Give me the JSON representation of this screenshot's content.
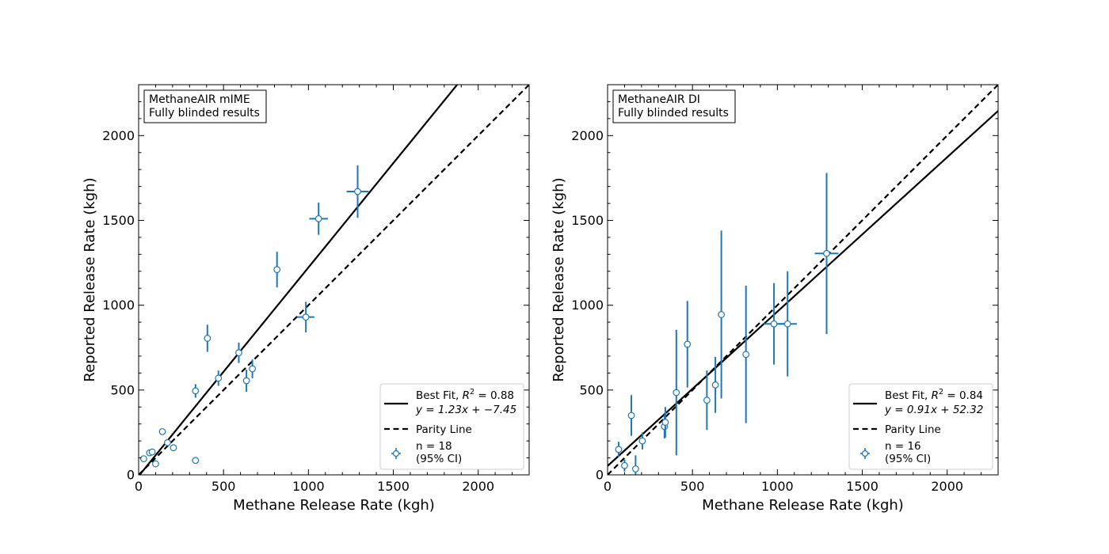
{
  "chart_data": [
    {
      "type": "scatter",
      "annotation_lines": [
        "MethaneAIR mIME",
        " Fully blinded results"
      ],
      "xlabel": "Methane Release Rate (kgh)",
      "ylabel": "Reported Release Rate (kgh)",
      "xlim": [
        0,
        2300
      ],
      "ylim": [
        0,
        2300
      ],
      "xticks": [
        0,
        500,
        1000,
        1500,
        2000
      ],
      "yticks": [
        0,
        500,
        1000,
        1500,
        2000
      ],
      "grid": false,
      "legend_position": "lower-right",
      "series": [
        {
          "name": "n = 18 (95% CI)",
          "legend_lines": [
            "n = 18",
            "(95% CI)"
          ],
          "color": "#1f77b4",
          "points": [
            {
              "x": 30,
              "y": 95,
              "xerr": 0,
              "yerr": 0
            },
            {
              "x": 65,
              "y": 130,
              "xerr": 0,
              "yerr": 0
            },
            {
              "x": 80,
              "y": 135,
              "xerr": 0,
              "yerr": 0
            },
            {
              "x": 100,
              "y": 65,
              "xerr": 0,
              "yerr": 0
            },
            {
              "x": 140,
              "y": 255,
              "xerr": 0,
              "yerr": 0
            },
            {
              "x": 170,
              "y": 190,
              "xerr": 0,
              "yerr": 0
            },
            {
              "x": 205,
              "y": 160,
              "xerr": 0,
              "yerr": 0
            },
            {
              "x": 335,
              "y": 85,
              "xerr": 0,
              "yerr": 0
            },
            {
              "x": 335,
              "y": 495,
              "xerr": 0,
              "yerr": 40
            },
            {
              "x": 405,
              "y": 805,
              "xerr": 0,
              "yerr": 80
            },
            {
              "x": 470,
              "y": 570,
              "xerr": 0,
              "yerr": 45
            },
            {
              "x": 590,
              "y": 720,
              "xerr": 0,
              "yerr": 60
            },
            {
              "x": 635,
              "y": 555,
              "xerr": 0,
              "yerr": 65
            },
            {
              "x": 670,
              "y": 625,
              "xerr": 0,
              "yerr": 55
            },
            {
              "x": 815,
              "y": 1210,
              "xerr": 0,
              "yerr": 105
            },
            {
              "x": 985,
              "y": 930,
              "xerr": 50,
              "yerr": 90
            },
            {
              "x": 1060,
              "y": 1510,
              "xerr": 55,
              "yerr": 95
            },
            {
              "x": 1290,
              "y": 1670,
              "xerr": 65,
              "yerr": 155
            }
          ]
        }
      ],
      "lines": [
        {
          "name": "best-fit",
          "legend_lines": [
            "Best Fit, R² = 0.88",
            "y = 1.23x + −7.45"
          ],
          "slope": 1.23,
          "intercept": -7.45,
          "style": "solid",
          "color": "#000000"
        },
        {
          "name": "parity",
          "legend_lines": [
            "Parity Line"
          ],
          "slope": 1.0,
          "intercept": 0,
          "style": "dashed",
          "color": "#000000"
        }
      ]
    },
    {
      "type": "scatter",
      "annotation_lines": [
        "MethaneAIR DI",
        " Fully blinded results"
      ],
      "xlabel": "Methane Release Rate (kgh)",
      "ylabel": "Reported Release Rate (kgh)",
      "xlim": [
        0,
        2300
      ],
      "ylim": [
        0,
        2300
      ],
      "xticks": [
        0,
        500,
        1000,
        1500,
        2000
      ],
      "yticks": [
        0,
        500,
        1000,
        1500,
        2000
      ],
      "grid": false,
      "legend_position": "lower-right",
      "series": [
        {
          "name": "n = 16 (95% CI)",
          "legend_lines": [
            "n = 16",
            "(95% CI)"
          ],
          "color": "#1f77b4",
          "points": [
            {
              "x": 65,
              "y": 150,
              "xerr": 0,
              "yerr": 45
            },
            {
              "x": 100,
              "y": 55,
              "xerr": 0,
              "yerr": 35
            },
            {
              "x": 140,
              "y": 350,
              "xerr": 0,
              "yerr": 120
            },
            {
              "x": 165,
              "y": 35,
              "xerr": 0,
              "yerr": 80
            },
            {
              "x": 205,
              "y": 200,
              "xerr": 0,
              "yerr": 50
            },
            {
              "x": 335,
              "y": 285,
              "xerr": 0,
              "yerr": 70
            },
            {
              "x": 340,
              "y": 310,
              "xerr": 0,
              "yerr": 90
            },
            {
              "x": 405,
              "y": 485,
              "xerr": 0,
              "yerr": 370
            },
            {
              "x": 470,
              "y": 770,
              "xerr": 0,
              "yerr": 255
            },
            {
              "x": 585,
              "y": 440,
              "xerr": 0,
              "yerr": 175
            },
            {
              "x": 635,
              "y": 530,
              "xerr": 0,
              "yerr": 165
            },
            {
              "x": 670,
              "y": 945,
              "xerr": 0,
              "yerr": 495
            },
            {
              "x": 815,
              "y": 710,
              "xerr": 0,
              "yerr": 405
            },
            {
              "x": 980,
              "y": 890,
              "xerr": 60,
              "yerr": 240
            },
            {
              "x": 1060,
              "y": 890,
              "xerr": 55,
              "yerr": 310
            },
            {
              "x": 1290,
              "y": 1305,
              "xerr": 70,
              "yerr": 475
            }
          ]
        }
      ],
      "lines": [
        {
          "name": "best-fit",
          "legend_lines": [
            "Best Fit, R² = 0.84",
            "y = 0.91x + 52.32"
          ],
          "slope": 0.91,
          "intercept": 52.32,
          "style": "solid",
          "color": "#000000"
        },
        {
          "name": "parity",
          "legend_lines": [
            "Parity Line"
          ],
          "slope": 1.0,
          "intercept": 0,
          "style": "dashed",
          "color": "#000000"
        }
      ]
    }
  ]
}
